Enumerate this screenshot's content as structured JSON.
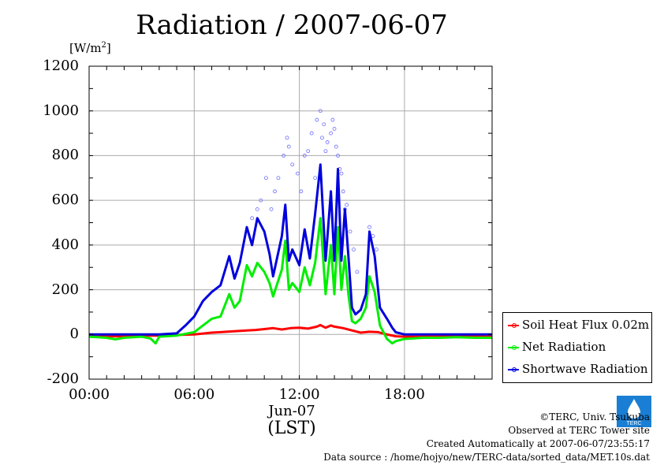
{
  "chart_data": {
    "type": "line",
    "title": "Radiation / 2007-06-07",
    "ylabel": "[W/m2]",
    "ylim": [
      -200,
      1200
    ],
    "yticks": [
      -200,
      0,
      200,
      400,
      600,
      800,
      1000,
      1200
    ],
    "xlim": [
      0,
      23
    ],
    "xticks": [
      {
        "hour": 0,
        "label": "00:00"
      },
      {
        "hour": 6,
        "label": "06:00"
      },
      {
        "hour": 12,
        "label": "12:00"
      },
      {
        "hour": 18,
        "label": "18:00"
      }
    ],
    "xdate": "Jun-07",
    "xunit": "(LST)",
    "grid": true,
    "legend_position": "right",
    "series": [
      {
        "name": "Soil Heat Flux 0.02m",
        "color": "#ff0000",
        "x": [
          0,
          1,
          2,
          3,
          4,
          5,
          6,
          7,
          7.5,
          8,
          9,
          9.5,
          10,
          10.5,
          11,
          11.5,
          12,
          12.5,
          13,
          13.2,
          13.5,
          13.8,
          14,
          14.5,
          15,
          15.5,
          16,
          16.5,
          17,
          17.5,
          18,
          19,
          20,
          21,
          22,
          23
        ],
        "y": [
          -5,
          -8,
          -8,
          -5,
          -5,
          -2,
          0,
          8,
          10,
          13,
          18,
          20,
          24,
          28,
          22,
          28,
          30,
          26,
          35,
          42,
          30,
          40,
          35,
          28,
          18,
          8,
          12,
          10,
          0,
          -8,
          -10,
          -10,
          -8,
          -8,
          -8,
          -10
        ]
      },
      {
        "name": "Net Radiation",
        "color": "#00ee00",
        "x": [
          0,
          1,
          1.5,
          2,
          3,
          3.5,
          3.8,
          4,
          5,
          6,
          7,
          7.5,
          8,
          8.3,
          8.6,
          9,
          9.3,
          9.6,
          10,
          10.3,
          10.5,
          11,
          11.2,
          11.4,
          11.6,
          12,
          12.3,
          12.6,
          12.9,
          13.2,
          13.5,
          13.8,
          14,
          14.2,
          14.4,
          14.6,
          14.8,
          15,
          15.2,
          15.5,
          15.8,
          16,
          16.3,
          16.6,
          17,
          17.3,
          17.5,
          18,
          18.5,
          19,
          20,
          21,
          22,
          23
        ],
        "y": [
          -10,
          -15,
          -22,
          -15,
          -10,
          -18,
          -40,
          -10,
          -5,
          10,
          70,
          80,
          180,
          120,
          150,
          310,
          260,
          320,
          280,
          230,
          170,
          290,
          420,
          200,
          230,
          190,
          300,
          220,
          320,
          520,
          180,
          400,
          180,
          480,
          200,
          350,
          180,
          60,
          50,
          70,
          120,
          260,
          190,
          40,
          -20,
          -40,
          -30,
          -20,
          -18,
          -15,
          -15,
          -12,
          -15,
          -15
        ]
      },
      {
        "name": "Shortwave Radiation",
        "color": "#0000dd",
        "x": [
          0,
          1,
          2,
          3,
          4,
          5,
          5.5,
          6,
          6.5,
          7,
          7.5,
          8,
          8.3,
          8.6,
          9,
          9.3,
          9.6,
          10,
          10.3,
          10.5,
          11,
          11.2,
          11.4,
          11.6,
          12,
          12.3,
          12.6,
          12.9,
          13.2,
          13.5,
          13.8,
          14,
          14.2,
          14.4,
          14.6,
          14.8,
          15,
          15.2,
          15.5,
          15.8,
          16,
          16.3,
          16.6,
          17,
          17.3,
          17.5,
          18,
          18.5,
          19,
          20,
          21,
          22,
          23
        ],
        "y": [
          0,
          0,
          0,
          0,
          0,
          5,
          40,
          80,
          150,
          190,
          220,
          350,
          250,
          320,
          480,
          400,
          520,
          460,
          360,
          260,
          440,
          580,
          330,
          380,
          310,
          470,
          340,
          540,
          760,
          330,
          640,
          330,
          740,
          330,
          560,
          350,
          120,
          90,
          110,
          180,
          460,
          350,
          120,
          70,
          30,
          10,
          0,
          0,
          0,
          0,
          0,
          0,
          0
        ]
      },
      {
        "name": "Shortwave Radiation 10s samples",
        "color": "#6a6aff",
        "kind": "scatter",
        "x": [
          9.3,
          9.6,
          9.8,
          10.1,
          10.4,
          10.6,
          10.8,
          11.1,
          11.3,
          11.4,
          11.6,
          11.9,
          12.1,
          12.3,
          12.5,
          12.7,
          12.9,
          13.0,
          13.2,
          13.3,
          13.4,
          13.5,
          13.6,
          13.8,
          13.9,
          14.0,
          14.1,
          14.2,
          14.3,
          14.4,
          14.5,
          14.6,
          14.7,
          14.9,
          15.1,
          15.3,
          16.0,
          16.2,
          16.4
        ],
        "y": [
          520,
          560,
          600,
          700,
          560,
          640,
          700,
          800,
          880,
          840,
          760,
          720,
          640,
          800,
          820,
          900,
          700,
          960,
          1000,
          880,
          940,
          820,
          860,
          900,
          960,
          920,
          840,
          800,
          740,
          720,
          640,
          560,
          580,
          460,
          380,
          280,
          480,
          440,
          380
        ]
      }
    ]
  },
  "legend": {
    "items": [
      {
        "label": "Soil Heat Flux 0.02m",
        "color": "#ff0000"
      },
      {
        "label": "Net Radiation",
        "color": "#00ee00"
      },
      {
        "label": "Shortwave Radiation",
        "color": "#0000dd"
      }
    ]
  },
  "credits": {
    "logo_text": "TERC",
    "line1": "©TERC, Univ. Tsukuba",
    "line2": "Observed at TERC Tower site",
    "line3": "Created Automatically at 2007-06-07/23:55:17",
    "line4": "Data source : /home/hojyo/new/TERC-data/sorted_data/MET.10s.dat"
  }
}
